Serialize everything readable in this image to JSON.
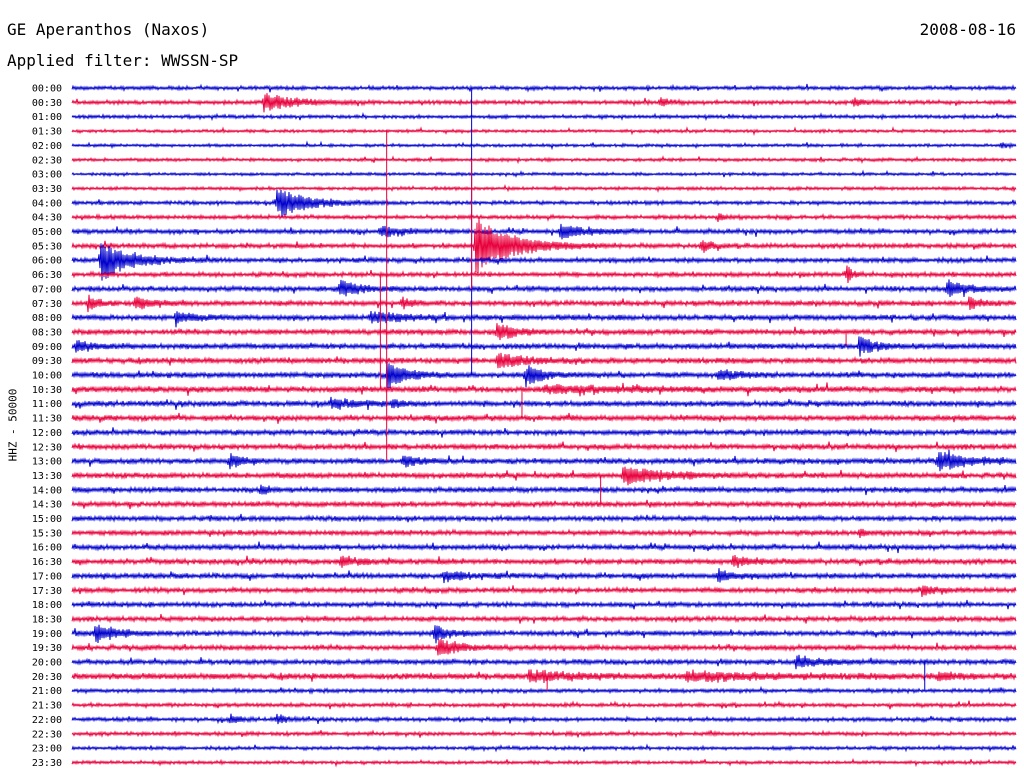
{
  "header": {
    "station": "GE Aperanthos (Naxos)",
    "date": "2008-08-16",
    "filter": "Applied filter: WWSSN-SP"
  },
  "chart_data": {
    "type": "line",
    "title": "GE Aperanthos (Naxos)",
    "ylabel": "HHZ - 50000",
    "row_labels": [
      "00:00",
      "00:30",
      "01:00",
      "01:30",
      "02:00",
      "02:30",
      "03:00",
      "03:30",
      "04:00",
      "04:30",
      "05:00",
      "05:30",
      "06:00",
      "06:30",
      "07:00",
      "07:30",
      "08:00",
      "08:30",
      "09:00",
      "09:30",
      "10:00",
      "10:30",
      "11:00",
      "11:30",
      "12:00",
      "12:30",
      "13:00",
      "13:30",
      "14:00",
      "14:30",
      "15:00",
      "15:30",
      "16:00",
      "16:30",
      "17:00",
      "17:30",
      "18:00",
      "18:30",
      "19:00",
      "19:30",
      "20:00",
      "20:30",
      "21:00",
      "21:30",
      "22:00",
      "22:30",
      "23:00",
      "23:30"
    ],
    "trace_colors": [
      "#0000cc",
      "#e8003c"
    ],
    "x_range_minutes": [
      0,
      30
    ],
    "noise_level": [
      1.5,
      1.6,
      1.4,
      1.2,
      1.2,
      1.3,
      1.2,
      1.3,
      1.5,
      1.6,
      1.8,
      1.8,
      1.9,
      1.8,
      2.0,
      2.0,
      2.2,
      2.1,
      2.2,
      2.2,
      2.2,
      2.3,
      2.2,
      2.2,
      2.1,
      2.1,
      2.2,
      2.2,
      2.1,
      2.1,
      2.0,
      2.0,
      2.0,
      2.1,
      2.1,
      2.0,
      1.9,
      1.9,
      2.0,
      2.0,
      2.0,
      2.4,
      1.6,
      1.5,
      1.6,
      1.5,
      1.4,
      1.3
    ],
    "events": [
      {
        "row": 1,
        "minute": 6.1,
        "amp": 9,
        "duration": 1.5
      },
      {
        "row": 1,
        "minute": 18.7,
        "amp": 4,
        "duration": 0.5
      },
      {
        "row": 1,
        "minute": 24.8,
        "amp": 4,
        "duration": 0.5
      },
      {
        "row": 4,
        "minute": 29.5,
        "amp": 3,
        "duration": 0.4
      },
      {
        "row": 8,
        "minute": 6.5,
        "amp": 16,
        "duration": 1.5
      },
      {
        "row": 9,
        "minute": 20.5,
        "amp": 4,
        "duration": 0.5
      },
      {
        "row": 10,
        "minute": 9.8,
        "amp": 6,
        "duration": 1.0
      },
      {
        "row": 10,
        "minute": 15.5,
        "amp": 6,
        "duration": 1.5
      },
      {
        "row": 11,
        "minute": 12.8,
        "amp": 30,
        "duration": 1.8
      },
      {
        "row": 11,
        "minute": 20.0,
        "amp": 7,
        "duration": 0.5
      },
      {
        "row": 12,
        "minute": 0.9,
        "amp": 20,
        "duration": 1.5
      },
      {
        "row": 13,
        "minute": 24.6,
        "amp": 10,
        "duration": 0.3
      },
      {
        "row": 14,
        "minute": 8.5,
        "amp": 9,
        "duration": 1.0
      },
      {
        "row": 14,
        "minute": 27.8,
        "amp": 8,
        "duration": 1.0
      },
      {
        "row": 15,
        "minute": 0.5,
        "amp": 9,
        "duration": 0.5
      },
      {
        "row": 15,
        "minute": 2.0,
        "amp": 7,
        "duration": 0.8
      },
      {
        "row": 15,
        "minute": 10.5,
        "amp": 5,
        "duration": 0.5
      },
      {
        "row": 15,
        "minute": 28.5,
        "amp": 6,
        "duration": 0.6
      },
      {
        "row": 16,
        "minute": 3.3,
        "amp": 7,
        "duration": 0.8
      },
      {
        "row": 16,
        "minute": 9.5,
        "amp": 6,
        "duration": 1.5
      },
      {
        "row": 17,
        "minute": 13.5,
        "amp": 9,
        "duration": 0.8
      },
      {
        "row": 18,
        "minute": 0.1,
        "amp": 6,
        "duration": 0.8
      },
      {
        "row": 18,
        "minute": 25.0,
        "amp": 9,
        "duration": 0.8
      },
      {
        "row": 19,
        "minute": 13.5,
        "amp": 7,
        "duration": 1.5
      },
      {
        "row": 20,
        "minute": 10.0,
        "amp": 14,
        "duration": 1.0
      },
      {
        "row": 20,
        "minute": 14.4,
        "amp": 12,
        "duration": 0.8
      },
      {
        "row": 20,
        "minute": 20.5,
        "amp": 5,
        "duration": 1.0
      },
      {
        "row": 21,
        "minute": 15.0,
        "amp": 3,
        "duration": 5.0
      },
      {
        "row": 22,
        "minute": 8.2,
        "amp": 5,
        "duration": 1.2
      },
      {
        "row": 22,
        "minute": 10.2,
        "amp": 4,
        "duration": 0.5
      },
      {
        "row": 26,
        "minute": 5.0,
        "amp": 7,
        "duration": 0.6
      },
      {
        "row": 26,
        "minute": 10.5,
        "amp": 6,
        "duration": 0.8
      },
      {
        "row": 26,
        "minute": 27.5,
        "amp": 9,
        "duration": 1.5
      },
      {
        "row": 27,
        "minute": 17.5,
        "amp": 8,
        "duration": 2.0
      },
      {
        "row": 28,
        "minute": 6.0,
        "amp": 5,
        "duration": 0.4
      },
      {
        "row": 31,
        "minute": 25.0,
        "amp": 4,
        "duration": 0.5
      },
      {
        "row": 33,
        "minute": 8.5,
        "amp": 5,
        "duration": 1.0
      },
      {
        "row": 33,
        "minute": 21.0,
        "amp": 5,
        "duration": 1.0
      },
      {
        "row": 34,
        "minute": 11.8,
        "amp": 6,
        "duration": 1.0
      },
      {
        "row": 34,
        "minute": 20.5,
        "amp": 6,
        "duration": 0.8
      },
      {
        "row": 35,
        "minute": 27.0,
        "amp": 5,
        "duration": 0.6
      },
      {
        "row": 38,
        "minute": 0.7,
        "amp": 10,
        "duration": 1.0
      },
      {
        "row": 38,
        "minute": 11.5,
        "amp": 8,
        "duration": 0.8
      },
      {
        "row": 39,
        "minute": 11.6,
        "amp": 10,
        "duration": 1.0
      },
      {
        "row": 40,
        "minute": 23.0,
        "amp": 6,
        "duration": 1.2
      },
      {
        "row": 41,
        "minute": 14.5,
        "amp": 5,
        "duration": 2.5
      },
      {
        "row": 41,
        "minute": 19.5,
        "amp": 4,
        "duration": 4.0
      },
      {
        "row": 41,
        "minute": 27.5,
        "amp": 4,
        "duration": 1.0
      },
      {
        "row": 44,
        "minute": 5.0,
        "amp": 5,
        "duration": 0.4
      },
      {
        "row": 44,
        "minute": 6.5,
        "amp": 6,
        "duration": 0.4
      }
    ],
    "spikes": [
      {
        "row": 0,
        "minute": 12.7,
        "rows_spanned": 20
      },
      {
        "row": 3,
        "minute": 10.0,
        "rows_spanned": 23
      },
      {
        "row": 5,
        "minute": 12.7,
        "rows_spanned": 9
      },
      {
        "row": 13,
        "minute": 9.8,
        "rows_spanned": 8
      },
      {
        "row": 21,
        "minute": 14.3,
        "rows_spanned": 2
      },
      {
        "row": 27,
        "minute": 16.8,
        "rows_spanned": 2
      },
      {
        "row": 17,
        "minute": 24.6,
        "rows_spanned": 1
      },
      {
        "row": 40,
        "minute": 27.1,
        "rows_spanned": 2
      },
      {
        "row": 41,
        "minute": 15.1,
        "rows_spanned": 1
      }
    ]
  }
}
